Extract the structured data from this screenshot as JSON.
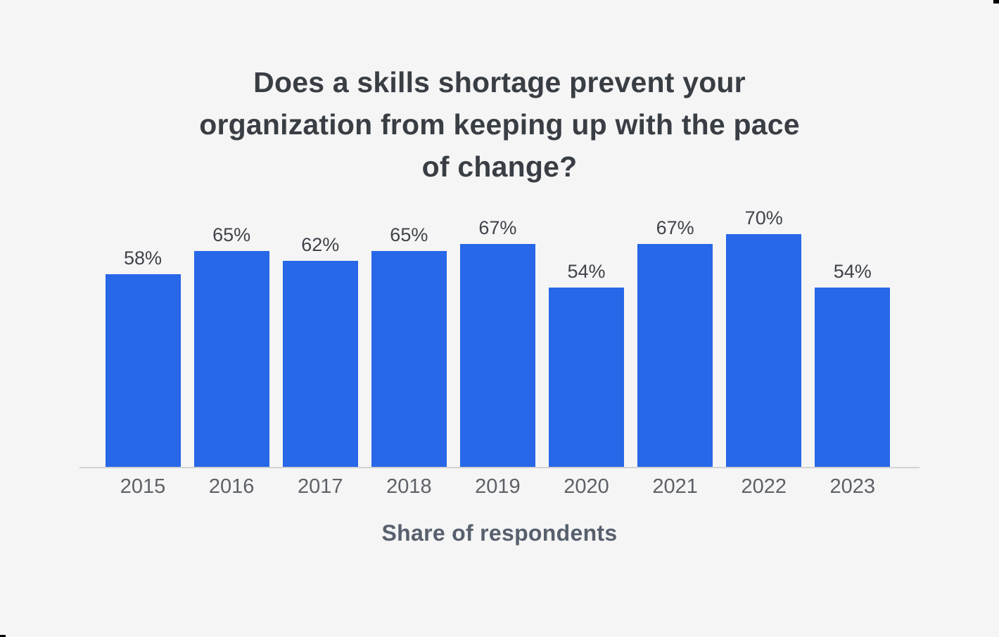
{
  "colors": {
    "background": "#f5f5f5",
    "bar": "#2767e8",
    "title_text": "#393e44",
    "value_label_text": "#3f434a",
    "tick_label_text": "#5d6167",
    "axis_title_text": "#58606e",
    "axis_line": "#d2d2d2"
  },
  "chart_data": {
    "type": "bar",
    "title": "Does a skills shortage prevent your organization from keeping up with the pace of change?",
    "title_lines": [
      "Does a skills shortage prevent your",
      "organization from keeping up with the pace",
      "of change?"
    ],
    "categories": [
      "2015",
      "2016",
      "2017",
      "2018",
      "2019",
      "2020",
      "2021",
      "2022",
      "2023"
    ],
    "values": [
      58,
      65,
      62,
      65,
      67,
      54,
      67,
      70,
      54
    ],
    "value_labels": [
      "58%",
      "65%",
      "62%",
      "65%",
      "67%",
      "54%",
      "67%",
      "70%",
      "54%"
    ],
    "xlabel": "Share of respondents",
    "ylabel": "",
    "ylim": [
      0,
      100
    ],
    "grid": false,
    "legend": "none",
    "data_labels_position": "above-bars",
    "single_series": true
  }
}
